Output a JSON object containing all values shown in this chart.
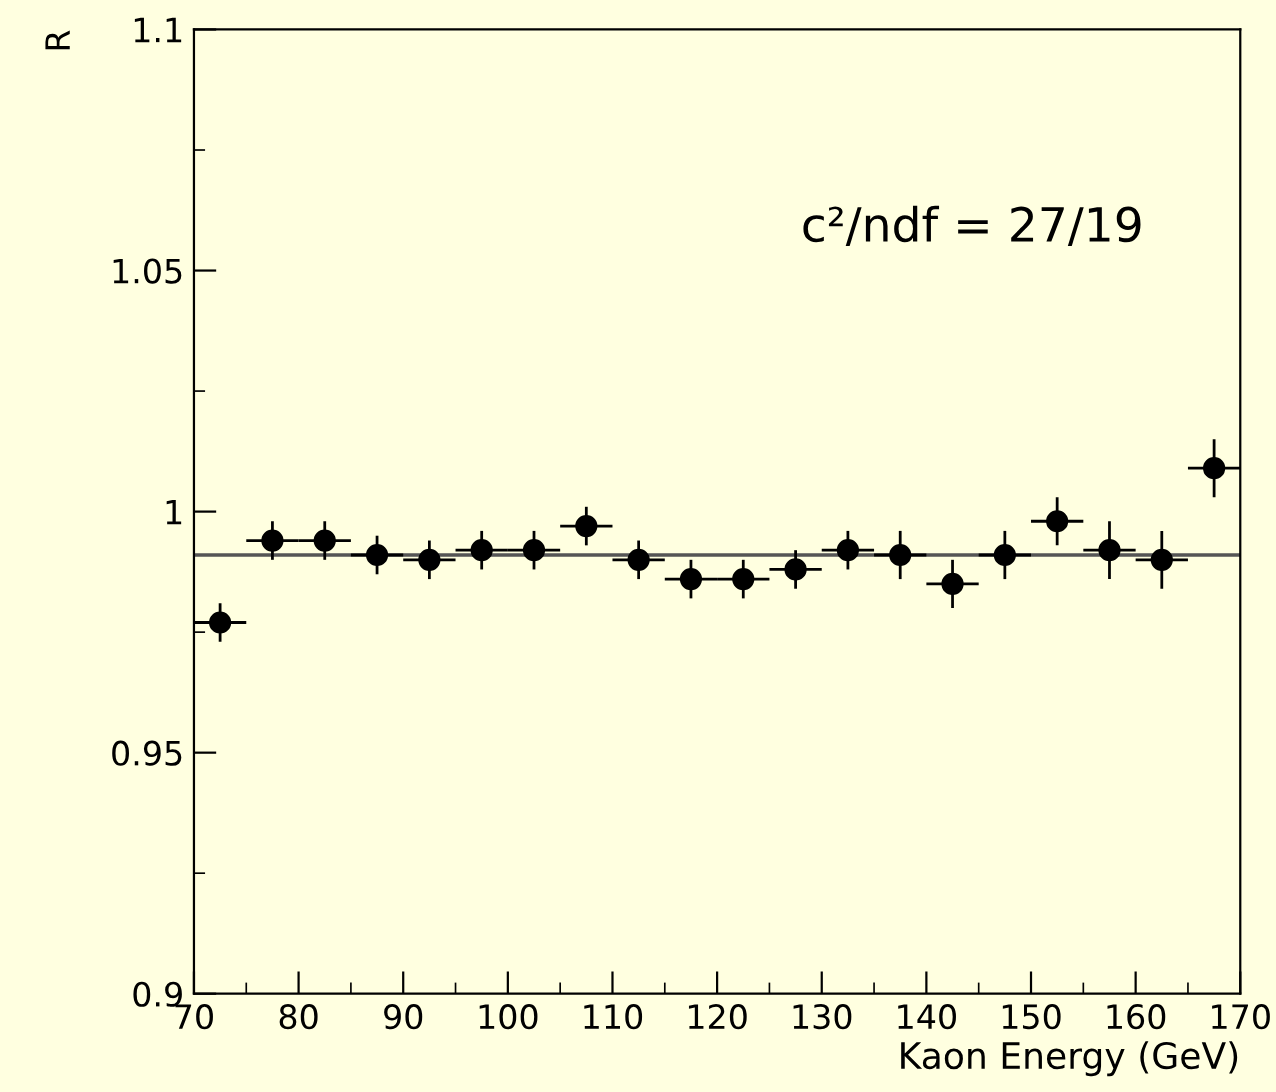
{
  "chart_data": {
    "type": "scatter",
    "xlabel": "Kaon Energy (GeV)",
    "ylabel": "R",
    "annotations": [
      "c²/ndf = 27/19"
    ],
    "x": [
      72.5,
      77.5,
      82.5,
      87.5,
      92.5,
      97.5,
      102.5,
      107.5,
      112.5,
      117.5,
      122.5,
      127.5,
      132.5,
      137.5,
      142.5,
      147.5,
      152.5,
      157.5,
      162.5,
      167.5
    ],
    "series": [
      {
        "color": "#000000",
        "marker": "circle",
        "values": [
          0.977,
          0.994,
          0.994,
          0.991,
          0.99,
          0.992,
          0.992,
          0.997,
          0.99,
          0.986,
          0.986,
          0.988,
          0.992,
          0.991,
          0.985,
          0.991,
          0.998,
          0.992,
          0.99,
          1.009
        ],
        "errors": [
          0.004,
          0.004,
          0.004,
          0.004,
          0.004,
          0.004,
          0.004,
          0.004,
          0.004,
          0.004,
          0.004,
          0.004,
          0.004,
          0.005,
          0.005,
          0.005,
          0.005,
          0.006,
          0.006,
          0.006
        ],
        "xerrors": [
          2.5,
          2.5,
          2.5,
          2.5,
          2.5,
          2.5,
          2.5,
          2.5,
          2.5,
          2.5,
          2.5,
          2.5,
          2.5,
          2.5,
          2.5,
          2.5,
          2.5,
          2.5,
          2.5,
          2.5
        ]
      },
      {
        "type": "line",
        "color": "#555555",
        "x": [
          70,
          170
        ],
        "values": [
          0.991,
          0.991
        ]
      }
    ],
    "xlim": [
      70,
      170
    ],
    "xticks": [
      70,
      80,
      90,
      100,
      110,
      120,
      130,
      140,
      150,
      160,
      170
    ],
    "ylim": [
      0.9,
      1.1
    ],
    "yticks": [
      0.9,
      0.95,
      1,
      1.05,
      1.1
    ],
    "grid": false,
    "legend": false
  }
}
